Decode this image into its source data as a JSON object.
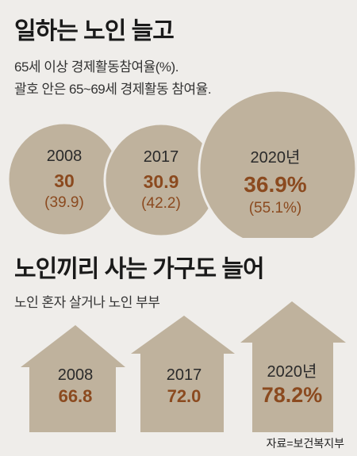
{
  "section1": {
    "title": "일하는 노인 늘고",
    "subtitle_line1": "65세 이상 경제활동참여율(%).",
    "subtitle_line2": "괄호 안은 65~69세 경제활동 참여율."
  },
  "section2": {
    "title": "노인끼리 사는 가구도 늘어",
    "subtitle": "노인 혼자 살거나 노인 부부"
  },
  "source": "자료=보건복지부",
  "colors": {
    "circle_fill": "#bfb29d",
    "house_fill": "#bfb29d",
    "value_text": "#8b4a1f",
    "background": "#efedea"
  },
  "chart_data": [
    {
      "type": "bar",
      "title": "일하는 노인 늘고",
      "subtitle": "65세 이상 경제활동참여율(%). 괄호 안은 65~69세 경제활동 참여율.",
      "categories": [
        "2008",
        "2017",
        "2020년"
      ],
      "series": [
        {
          "name": "65세 이상 경제활동참여율(%)",
          "values": [
            30,
            30.9,
            36.9
          ]
        },
        {
          "name": "65~69세 경제활동 참여율",
          "values": [
            39.9,
            42.2,
            55.1
          ]
        }
      ],
      "labels": {
        "primary": [
          "30",
          "30.9",
          "36.9%"
        ],
        "secondary": [
          "(39.9)",
          "(42.2)",
          "(55.1%)"
        ]
      }
    },
    {
      "type": "bar",
      "title": "노인끼리 사는 가구도 늘어",
      "subtitle": "노인 혼자 살거나 노인 부부",
      "categories": [
        "2008",
        "2017",
        "2020년"
      ],
      "values": [
        66.8,
        72.0,
        78.2
      ],
      "labels": {
        "primary": [
          "66.8",
          "72.0",
          "78.2%"
        ]
      }
    }
  ]
}
